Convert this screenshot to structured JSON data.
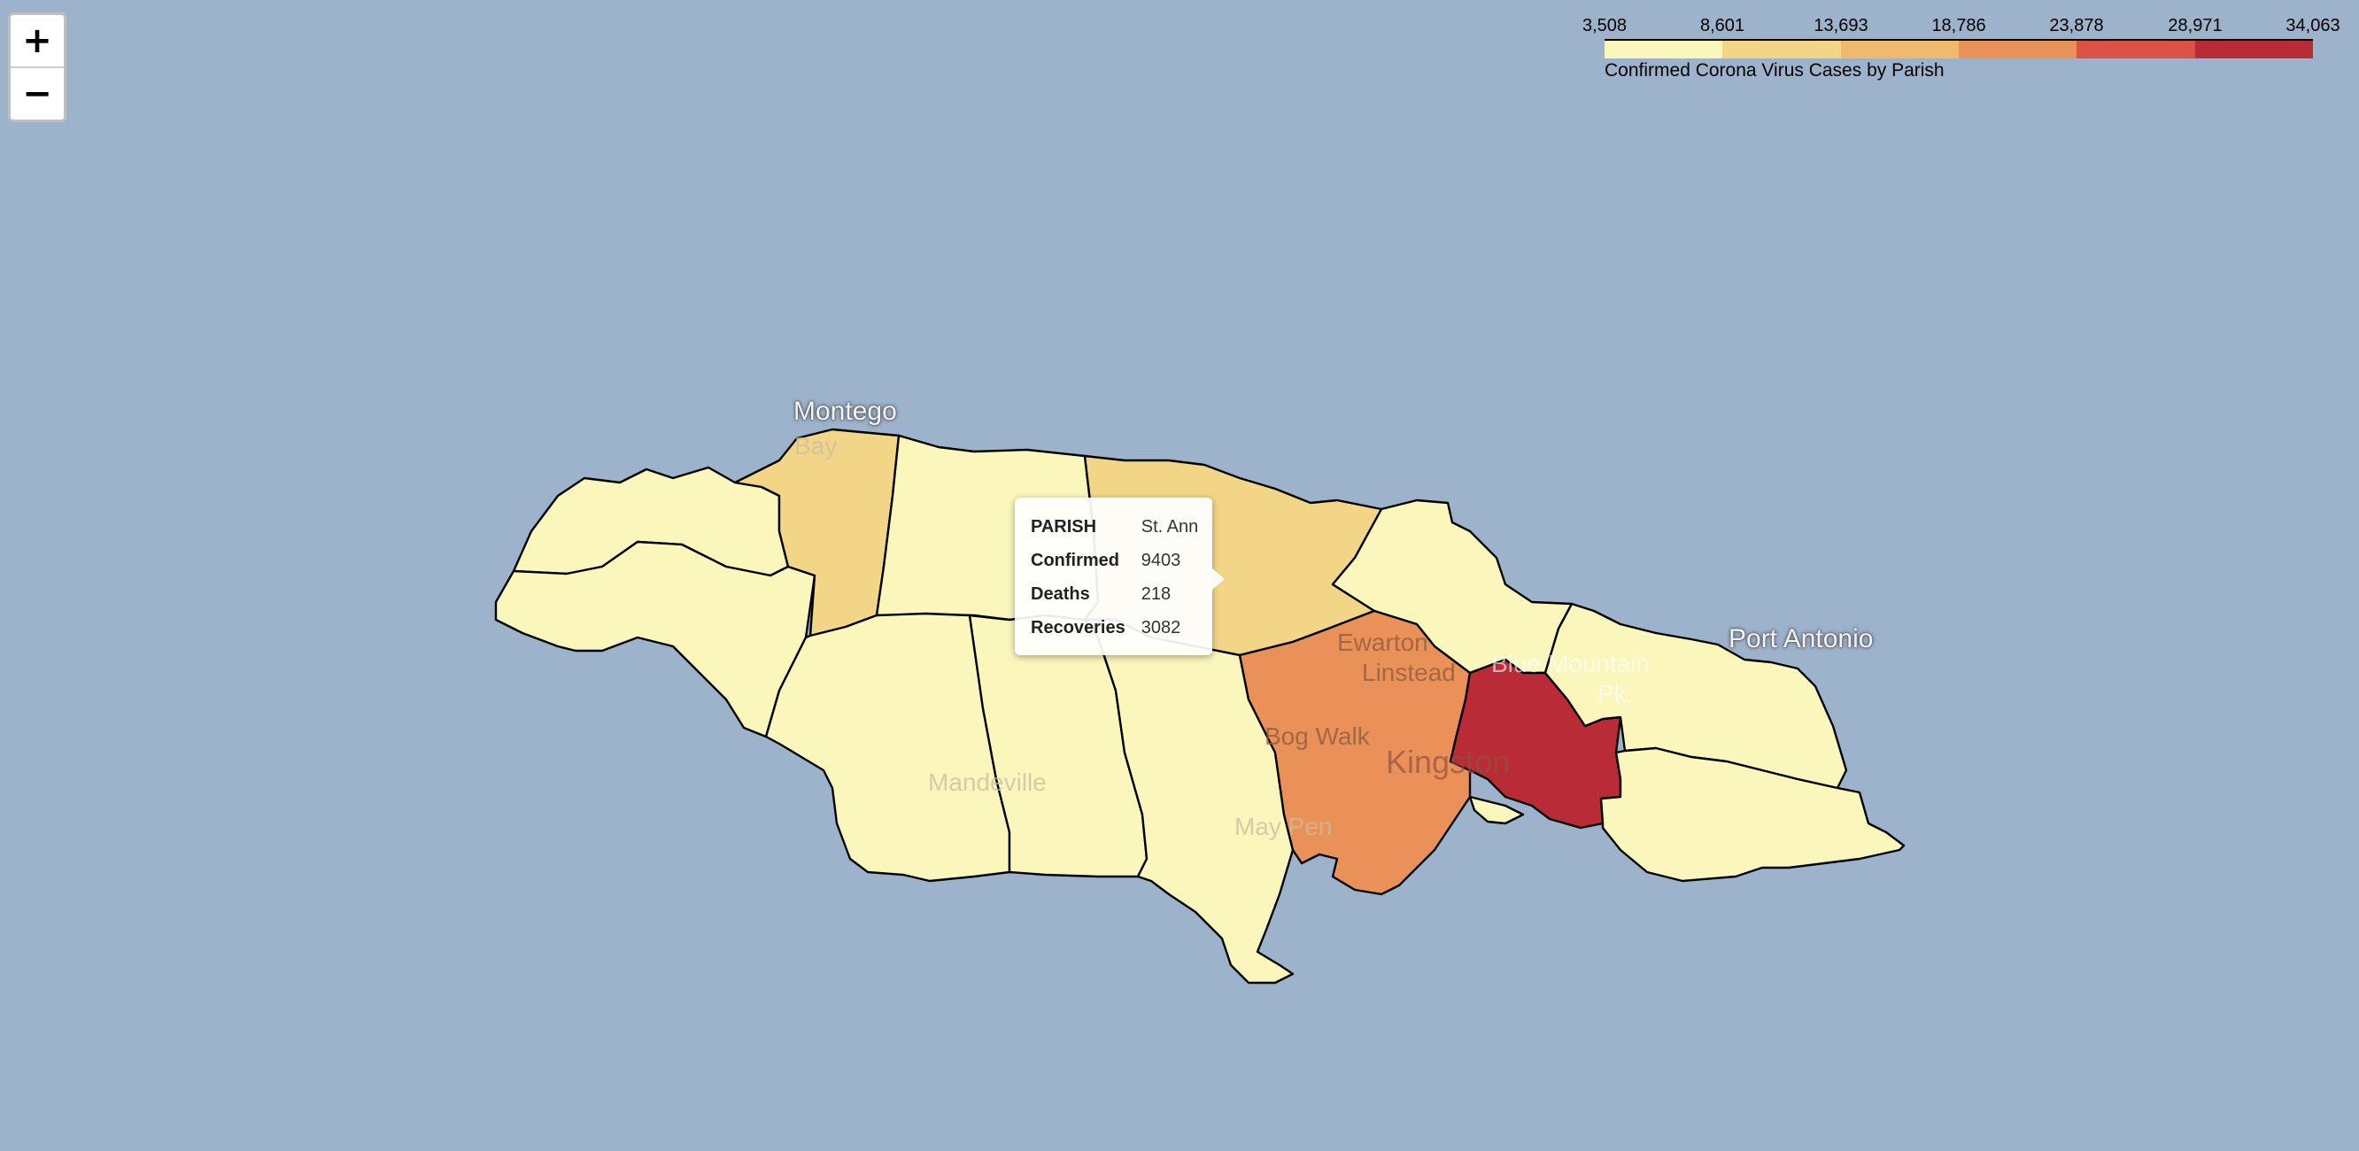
{
  "zoom": {
    "in_label": "+",
    "out_label": "−"
  },
  "legend": {
    "ticks": [
      "3,508",
      "8,601",
      "13,693",
      "18,786",
      "23,878",
      "28,971",
      "34,063"
    ],
    "colors": [
      "#fbf6bb",
      "#f3d587",
      "#efb96e",
      "#ea915a",
      "#dd5247",
      "#b82b37"
    ],
    "caption": "Confirmed Corona Virus Cases by Parish"
  },
  "tooltip": {
    "rows": [
      {
        "key": "PARISH",
        "value": "St. Ann"
      },
      {
        "key": "Confirmed",
        "value": "9403"
      },
      {
        "key": "Deaths",
        "value": "218"
      },
      {
        "key": "Recoveries",
        "value": "3082"
      }
    ]
  },
  "basemap_labels": [
    {
      "text": "Montego",
      "kind": "major"
    },
    {
      "text": "Bay",
      "kind": "minor"
    },
    {
      "text": "Port Antonio",
      "kind": "major"
    },
    {
      "text": "Mandeville",
      "kind": "minor"
    },
    {
      "text": "May Pen",
      "kind": "minor"
    },
    {
      "text": "Bog Walk",
      "kind": "minor"
    },
    {
      "text": "Ewarton",
      "kind": "minor"
    },
    {
      "text": "Linstead",
      "kind": "minor"
    },
    {
      "text": "Kingston",
      "kind": "minor"
    },
    {
      "text": "Blue Mountain",
      "kind": "minor"
    },
    {
      "text": "Pk.",
      "kind": "minor"
    }
  ],
  "colors": {
    "water": "#9db2cb",
    "parish_low": "#fbf6bb",
    "parish_mid": "#f3d587",
    "parish_orange": "#ea915a",
    "parish_high": "#b82b37"
  }
}
